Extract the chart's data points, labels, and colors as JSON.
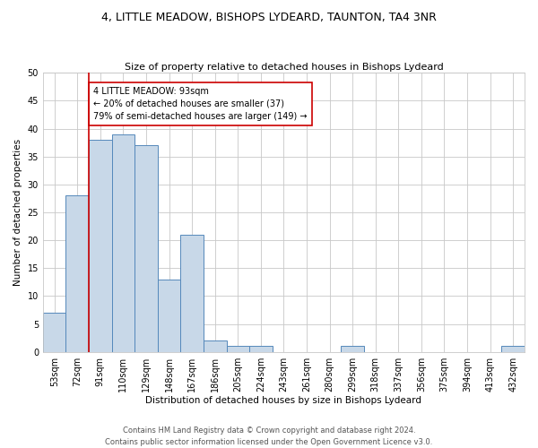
{
  "title": "4, LITTLE MEADOW, BISHOPS LYDEARD, TAUNTON, TA4 3NR",
  "subtitle": "Size of property relative to detached houses in Bishops Lydeard",
  "xlabel": "Distribution of detached houses by size in Bishops Lydeard",
  "ylabel": "Number of detached properties",
  "bar_color": "#c8d8e8",
  "bar_edge_color": "#5588bb",
  "background_color": "#ffffff",
  "grid_color": "#c8c8c8",
  "categories": [
    "53sqm",
    "72sqm",
    "91sqm",
    "110sqm",
    "129sqm",
    "148sqm",
    "167sqm",
    "186sqm",
    "205sqm",
    "224sqm",
    "243sqm",
    "261sqm",
    "280sqm",
    "299sqm",
    "318sqm",
    "337sqm",
    "356sqm",
    "375sqm",
    "394sqm",
    "413sqm",
    "432sqm"
  ],
  "values": [
    7,
    28,
    38,
    39,
    37,
    13,
    21,
    2,
    1,
    1,
    0,
    0,
    0,
    1,
    0,
    0,
    0,
    0,
    0,
    0,
    1
  ],
  "marker_index": 2,
  "marker_color": "#cc0000",
  "annotation_text": "4 LITTLE MEADOW: 93sqm\n← 20% of detached houses are smaller (37)\n79% of semi-detached houses are larger (149) →",
  "annotation_box_color": "#ffffff",
  "annotation_box_edge_color": "#cc0000",
  "ylim": [
    0,
    50
  ],
  "yticks": [
    0,
    5,
    10,
    15,
    20,
    25,
    30,
    35,
    40,
    45,
    50
  ],
  "title_fontsize": 9,
  "subtitle_fontsize": 8,
  "axis_label_fontsize": 7.5,
  "tick_fontsize": 7,
  "annotation_fontsize": 7,
  "footnote1": "Contains HM Land Registry data © Crown copyright and database right 2024.",
  "footnote2": "Contains public sector information licensed under the Open Government Licence v3.0.",
  "footnote_fontsize": 6
}
